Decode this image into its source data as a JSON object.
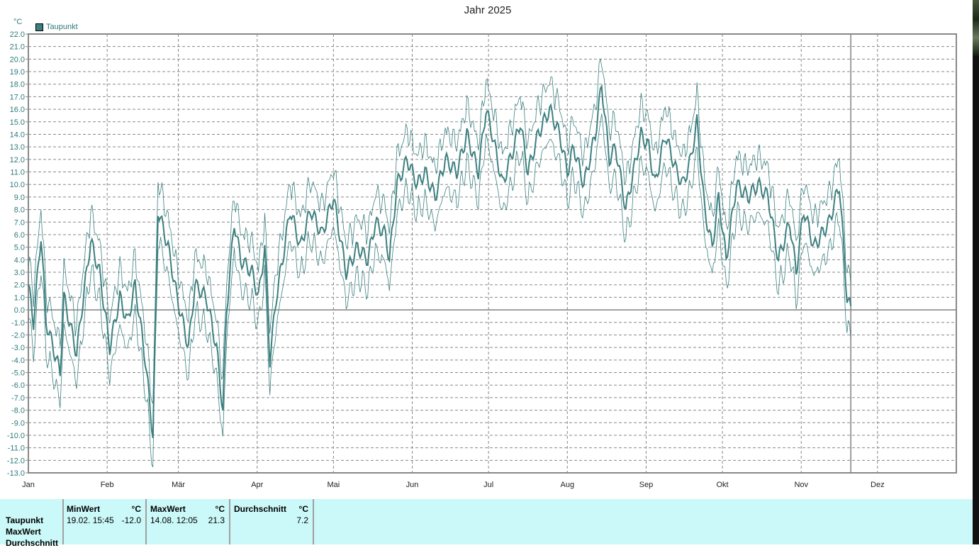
{
  "chart_data": {
    "type": "line",
    "title": "Jahr 2025",
    "ylabel": "°C",
    "ylim": [
      -13,
      22
    ],
    "ytick_step": 1,
    "xlim_days": [
      0,
      365
    ],
    "months": [
      "Jan",
      "Feb",
      "Mär",
      "Apr",
      "Mai",
      "Jun",
      "Jul",
      "Aug",
      "Sep",
      "Okt",
      "Nov",
      "Dez"
    ],
    "month_start_days": [
      0,
      31,
      59,
      90,
      120,
      151,
      181,
      212,
      243,
      273,
      304,
      334
    ],
    "current_day": 323.5,
    "legend": [
      {
        "name": "Taupunkt",
        "color": "#3d7f7f"
      }
    ],
    "legend_position": "top-left",
    "grid": true,
    "series": [
      {
        "name": "Taupunkt (Durchschnitt)",
        "color": "#3d7f7f",
        "band_spread": 2.5,
        "points": [
          [
            0,
            2
          ],
          [
            2,
            -1
          ],
          [
            5,
            6
          ],
          [
            7,
            -1
          ],
          [
            12.5,
            -5
          ],
          [
            14,
            1
          ],
          [
            19,
            -3.5
          ],
          [
            21,
            0
          ],
          [
            24.5,
            5.5
          ],
          [
            28,
            3
          ],
          [
            32,
            -3
          ],
          [
            36,
            1
          ],
          [
            39,
            -1
          ],
          [
            42,
            2
          ],
          [
            46,
            -4
          ],
          [
            49,
            -10
          ],
          [
            51,
            8
          ],
          [
            55,
            5
          ],
          [
            58.5,
            1
          ],
          [
            63,
            -3
          ],
          [
            65.5,
            2
          ],
          [
            70,
            1
          ],
          [
            74,
            -3
          ],
          [
            76.5,
            -8
          ],
          [
            78,
            0
          ],
          [
            81,
            7
          ],
          [
            83.5,
            4
          ],
          [
            88,
            3
          ],
          [
            90.5,
            1
          ],
          [
            93,
            5
          ],
          [
            95,
            -4
          ],
          [
            97.5,
            1
          ],
          [
            100,
            4
          ],
          [
            103,
            8
          ],
          [
            107,
            5
          ],
          [
            111,
            8
          ],
          [
            115.5,
            6
          ],
          [
            120,
            9
          ],
          [
            122.5,
            6
          ],
          [
            125,
            3
          ],
          [
            129.5,
            5
          ],
          [
            133.5,
            4
          ],
          [
            136.5,
            7
          ],
          [
            140.5,
            6
          ],
          [
            142,
            4
          ],
          [
            145,
            10
          ],
          [
            149,
            12
          ],
          [
            153,
            10
          ],
          [
            156,
            11
          ],
          [
            160,
            9
          ],
          [
            164,
            12
          ],
          [
            168.5,
            11
          ],
          [
            172.5,
            14
          ],
          [
            177,
            11
          ],
          [
            180,
            16
          ],
          [
            182.5,
            14
          ],
          [
            186.5,
            10
          ],
          [
            191,
            13
          ],
          [
            193.5,
            15
          ],
          [
            196.5,
            11
          ],
          [
            200.5,
            14
          ],
          [
            205,
            16
          ],
          [
            209,
            14
          ],
          [
            212,
            11
          ],
          [
            214.5,
            13
          ],
          [
            218.5,
            10
          ],
          [
            223,
            14
          ],
          [
            225.5,
            18
          ],
          [
            228.5,
            12
          ],
          [
            231,
            13
          ],
          [
            235,
            8
          ],
          [
            238,
            11
          ],
          [
            241,
            14
          ],
          [
            244,
            13
          ],
          [
            246.5,
            10
          ],
          [
            250.5,
            14
          ],
          [
            255,
            11
          ],
          [
            257.5,
            10
          ],
          [
            260.5,
            12
          ],
          [
            263,
            15
          ],
          [
            266,
            8
          ],
          [
            269,
            5
          ],
          [
            271.5,
            9
          ],
          [
            274.5,
            4
          ],
          [
            278.5,
            10
          ],
          [
            283,
            9
          ],
          [
            287,
            10
          ],
          [
            291,
            9
          ],
          [
            295,
            4
          ],
          [
            299.5,
            7
          ],
          [
            302,
            3
          ],
          [
            305,
            8
          ],
          [
            309,
            5
          ],
          [
            312,
            6
          ],
          [
            315,
            7
          ],
          [
            319,
            10
          ],
          [
            321,
            4
          ],
          [
            322,
            1
          ],
          [
            323.5,
            0
          ]
        ]
      }
    ]
  },
  "table": {
    "rows": [
      "Taupunkt",
      "MaxWert",
      "Durchschnitt"
    ],
    "min": {
      "header": "MinWert",
      "unit": "°C",
      "date": "19.02.  15:45",
      "value": "-12.0"
    },
    "max": {
      "header": "MaxWert",
      "unit": "°C",
      "date": "14.08.  12:05",
      "value": "21.3"
    },
    "avg": {
      "header": "Durchschnitt",
      "unit": "°C",
      "value": "7.2"
    }
  }
}
